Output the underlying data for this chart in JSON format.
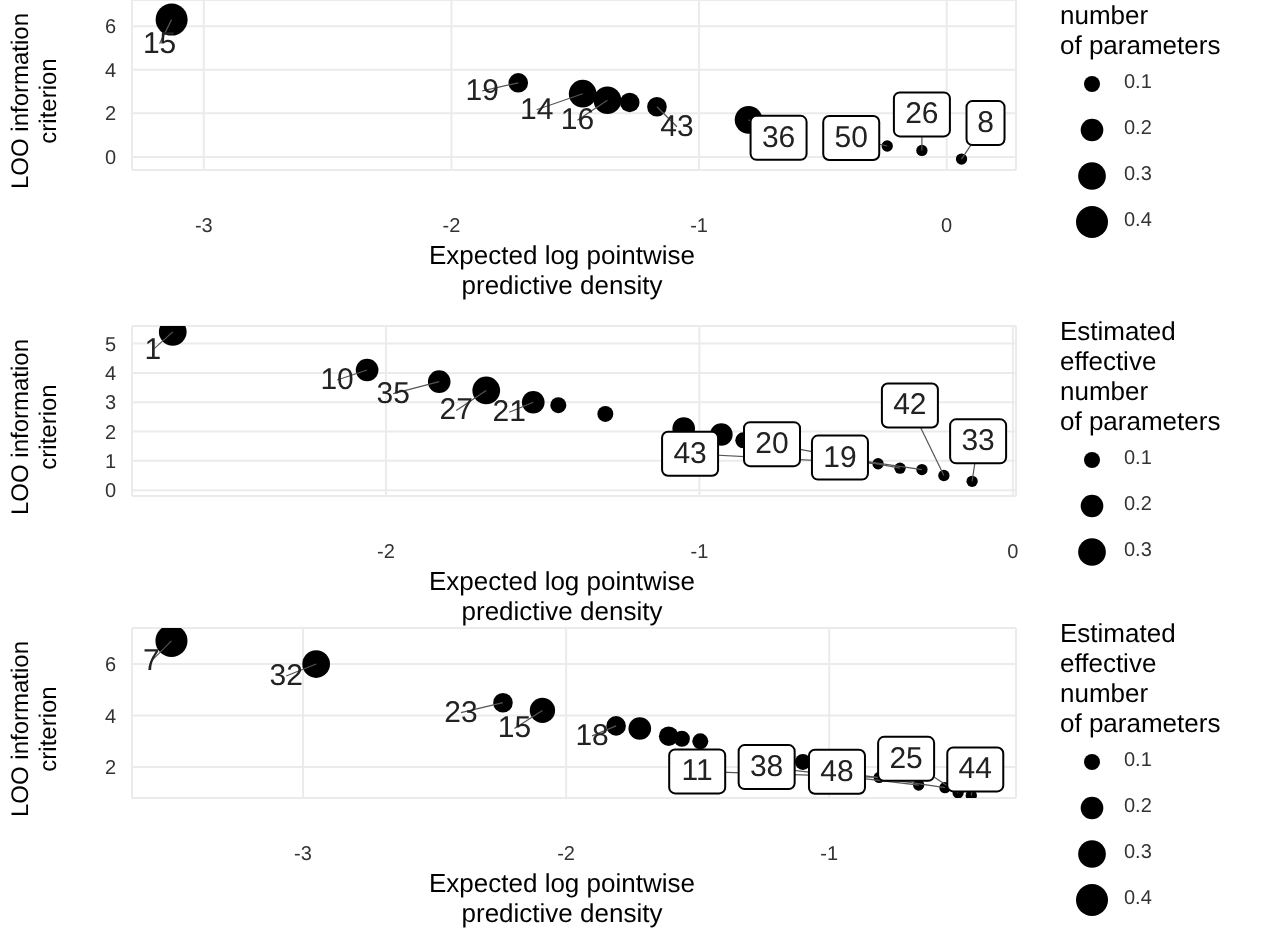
{
  "chart_data": [
    {
      "type": "bubble",
      "xlabel": "Expected log pointwise\npredictive density",
      "ylabel": "LOO information\ncriterion",
      "legend_title": "number\nof parameters",
      "grid": true,
      "xlim": [
        -3.29,
        0.28
      ],
      "xticks": [
        -3,
        -2,
        -1,
        0
      ],
      "ylim": [
        -0.6,
        7.2
      ],
      "yticks": [
        0,
        2,
        4,
        6
      ],
      "size_legend": [
        0.1,
        0.2,
        0.3,
        0.4
      ],
      "series": [
        {
          "color": "#000000",
          "x": [
            -3.13,
            -1.73,
            -1.47,
            -1.37,
            -1.28,
            -1.17,
            -0.8,
            -0.24,
            -0.1,
            0.06
          ],
          "values": [
            6.3,
            3.4,
            2.9,
            2.6,
            2.5,
            2.3,
            1.7,
            0.5,
            0.3,
            -0.1
          ],
          "sizes": [
            0.4,
            0.15,
            0.3,
            0.3,
            0.15,
            0.15,
            0.3,
            0.05,
            0.05,
            0.05
          ]
        }
      ],
      "annotations": [
        {
          "text": "15",
          "x": -3.13,
          "y": 6.3
        },
        {
          "text": "19",
          "x": -1.73,
          "y": 3.4
        },
        {
          "text": "14",
          "x": -1.47,
          "y": 2.9
        },
        {
          "text": "16",
          "x": -1.37,
          "y": 2.6
        },
        {
          "text": "43",
          "x": -1.17,
          "y": 2.3
        },
        {
          "text": "36",
          "x": -0.8,
          "y": 1.7
        },
        {
          "text": "50",
          "x": -0.24,
          "y": 0.5
        },
        {
          "text": "26",
          "x": -0.1,
          "y": 0.3
        },
        {
          "text": "8",
          "x": 0.06,
          "y": -0.1
        }
      ]
    },
    {
      "type": "bubble",
      "xlabel": "Expected log pointwise\npredictive density",
      "ylabel": "LOO information\ncriterion",
      "legend_title": "Estimated\neffective\nnumber\nof parameters",
      "grid": true,
      "xlim": [
        -2.81,
        0.01
      ],
      "xticks": [
        -2,
        -1,
        0
      ],
      "ylim": [
        -0.2,
        5.6
      ],
      "yticks": [
        0,
        1,
        2,
        3,
        4,
        5
      ],
      "size_legend": [
        0.1,
        0.2,
        0.3
      ],
      "series": [
        {
          "color": "#000000",
          "x": [
            -2.68,
            -2.06,
            -1.83,
            -1.68,
            -1.53,
            -1.45,
            -1.3,
            -1.05,
            -0.93,
            -0.86,
            -0.43,
            -0.36,
            -0.29,
            -0.22,
            -0.13
          ],
          "values": [
            5.4,
            4.1,
            3.7,
            3.4,
            3.0,
            2.9,
            2.6,
            2.1,
            1.9,
            1.7,
            0.9,
            0.75,
            0.7,
            0.5,
            0.3
          ],
          "sizes": [
            0.3,
            0.2,
            0.2,
            0.3,
            0.2,
            0.1,
            0.1,
            0.2,
            0.2,
            0.1,
            0.05,
            0.05,
            0.05,
            0.05,
            0.05
          ]
        }
      ],
      "annotations": [
        {
          "text": "1",
          "x": -2.68,
          "y": 5.4
        },
        {
          "text": "10",
          "x": -2.06,
          "y": 4.1
        },
        {
          "text": "35",
          "x": -1.83,
          "y": 3.7
        },
        {
          "text": "27",
          "x": -1.68,
          "y": 3.4
        },
        {
          "text": "21",
          "x": -1.53,
          "y": 3.0
        },
        {
          "text": "43",
          "x": -0.43,
          "y": 0.9
        },
        {
          "text": "20",
          "x": -0.36,
          "y": 0.75
        },
        {
          "text": "19",
          "x": -0.29,
          "y": 0.7
        },
        {
          "text": "42",
          "x": -0.22,
          "y": 0.5
        },
        {
          "text": "33",
          "x": -0.13,
          "y": 0.3
        }
      ]
    },
    {
      "type": "bubble",
      "xlabel": "Expected log pointwise\npredictive density",
      "ylabel": "LOO information\ncriterion",
      "legend_title": "Estimated\neffective\nnumber\nof parameters",
      "grid": true,
      "xlim": [
        -3.65,
        -0.29
      ],
      "xticks": [
        -3,
        -2,
        -1
      ],
      "ylim": [
        0.8,
        7.4
      ],
      "yticks": [
        2,
        4,
        6
      ],
      "size_legend": [
        0.1,
        0.2,
        0.3,
        0.4
      ],
      "series": [
        {
          "color": "#000000",
          "x": [
            -3.5,
            -2.95,
            -2.24,
            -2.09,
            -1.81,
            -1.72,
            -1.61,
            -1.56,
            -1.49,
            -1.1,
            -0.81,
            -0.66,
            -0.56,
            -0.51,
            -0.46
          ],
          "values": [
            6.9,
            6.0,
            4.5,
            4.2,
            3.6,
            3.5,
            3.2,
            3.1,
            3.0,
            2.2,
            1.6,
            1.3,
            1.2,
            1.0,
            0.9
          ],
          "sizes": [
            0.4,
            0.3,
            0.15,
            0.25,
            0.15,
            0.2,
            0.15,
            0.1,
            0.1,
            0.1,
            0.05,
            0.05,
            0.05,
            0.05,
            0.05
          ]
        }
      ],
      "annotations": [
        {
          "text": "7",
          "x": -3.5,
          "y": 6.9
        },
        {
          "text": "32",
          "x": -2.95,
          "y": 6.0
        },
        {
          "text": "23",
          "x": -2.24,
          "y": 4.5
        },
        {
          "text": "15",
          "x": -2.09,
          "y": 4.2
        },
        {
          "text": "18",
          "x": -1.81,
          "y": 3.6
        },
        {
          "text": "11",
          "x": -0.81,
          "y": 1.6
        },
        {
          "text": "38",
          "x": -0.66,
          "y": 1.3
        },
        {
          "text": "48",
          "x": -0.56,
          "y": 1.2
        },
        {
          "text": "25",
          "x": -0.51,
          "y": 1.0
        },
        {
          "text": "44",
          "x": -0.46,
          "y": 0.9
        }
      ]
    }
  ]
}
